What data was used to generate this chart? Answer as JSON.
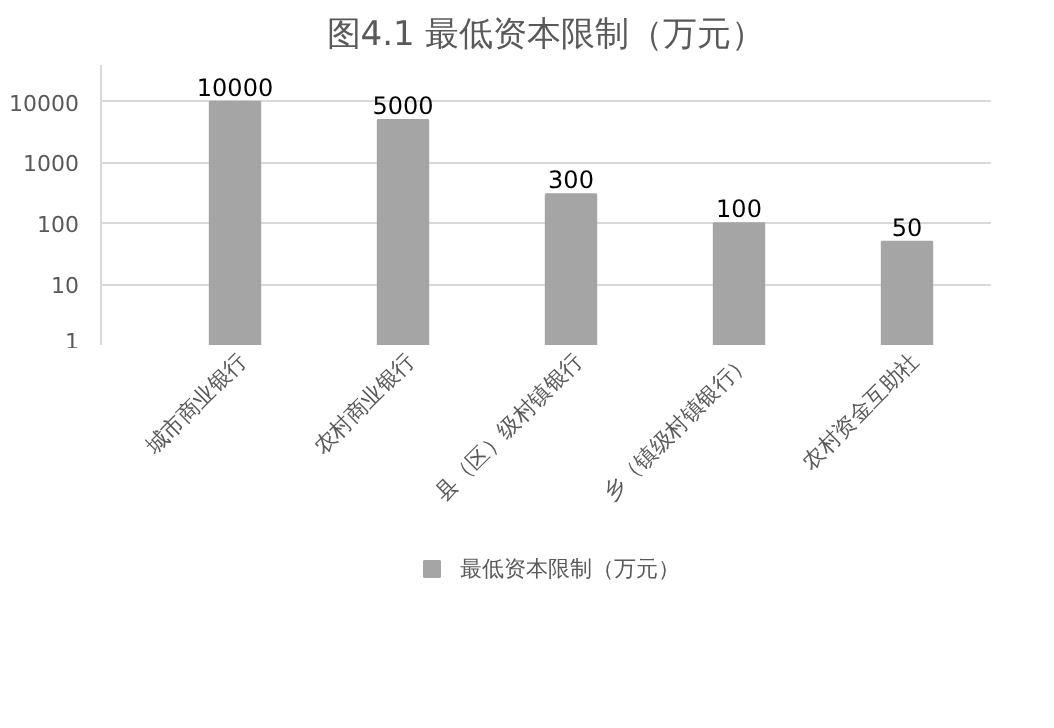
{
  "chart_data": {
    "type": "bar",
    "title": "图4.1 最低资本限制（万元）",
    "categories": [
      "城市商业银行",
      "农村商业银行",
      "县（区）级村镇银行",
      "乡（镇级村镇银行）",
      "农村资金互助社"
    ],
    "series": [
      {
        "name": "最低资本限制（万元）",
        "color": "#a5a5a5",
        "values": [
          10000,
          5000,
          300,
          100,
          50
        ]
      }
    ],
    "log": "y",
    "ylim": [
      1,
      40000
    ],
    "yticks": [
      1,
      10,
      100,
      1000,
      10000
    ],
    "grid": "y",
    "legend": "bottom",
    "data_labels": true
  }
}
